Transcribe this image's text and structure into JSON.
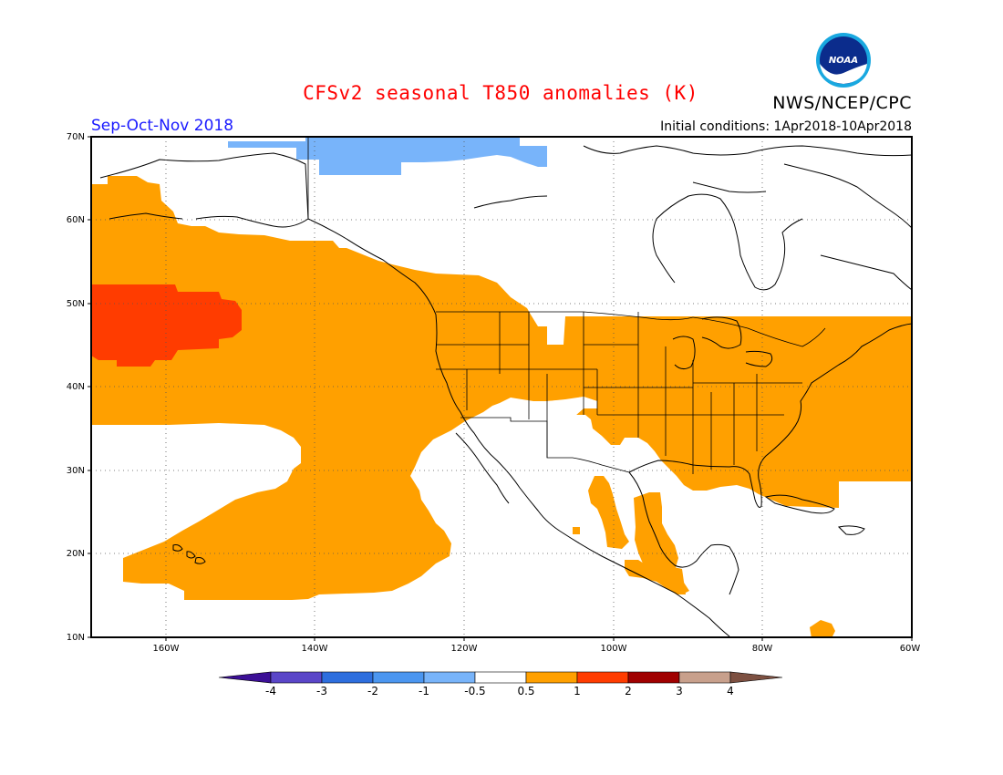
{
  "header": {
    "title": "CFSv2 seasonal T850 anomalies (K)",
    "agency": "NWS/NCEP/CPC",
    "season": "Sep-Oct-Nov 2018",
    "initial_conditions": "Initial conditions: 1Apr2018-10Apr2018",
    "logo_text": "NOAA"
  },
  "axes": {
    "lat_labels": [
      "70N",
      "60N",
      "50N",
      "40N",
      "30N",
      "20N",
      "10N"
    ],
    "lon_labels": [
      "160W",
      "140W",
      "120W",
      "100W",
      "80W",
      "60W"
    ]
  },
  "colorbar": {
    "labels": [
      "-4",
      "-3",
      "-2",
      "-1",
      "-0.5",
      "0.5",
      "1",
      "2",
      "3",
      "4"
    ],
    "colors": [
      "#3c0f96",
      "#5a46c8",
      "#2d6ede",
      "#4b96f0",
      "#78b4fa",
      "#ffffff",
      "#ffa000",
      "#ff3c00",
      "#a00000",
      "#c8a08c",
      "#7d5041"
    ]
  },
  "legend_colors": {
    "warm_0_5_to_1": "#ffa000",
    "warm_1_to_2": "#ff3c00",
    "cool_minus1_to_minus0_5": "#78b4fa"
  }
}
